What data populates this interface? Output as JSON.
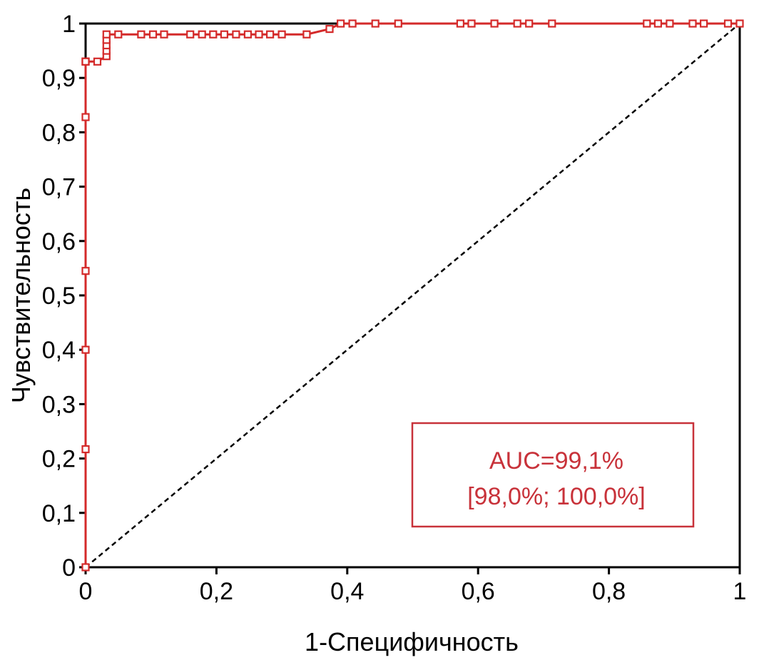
{
  "chart_data": {
    "type": "line",
    "xlabel": "1-Специфичность",
    "ylabel": "Чувствительность",
    "xlim": [
      0,
      1
    ],
    "ylim": [
      0,
      1
    ],
    "x_ticks": [
      "0",
      "0,2",
      "0,4",
      "0,6",
      "0,8",
      "1"
    ],
    "y_ticks": [
      "0",
      "0,1",
      "0,2",
      "0,3",
      "0,4",
      "0,5",
      "0,6",
      "0,7",
      "0,8",
      "0,9",
      "1"
    ],
    "grid": false,
    "series": [
      {
        "color": "#d42a2a",
        "marker": "square",
        "x": [
          0,
          0,
          0,
          0,
          0,
          0,
          0,
          0,
          0.018,
          0.032,
          0.032,
          0.032,
          0.032,
          0.032,
          0.05,
          0.085,
          0.103,
          0.12,
          0.16,
          0.178,
          0.195,
          0.212,
          0.23,
          0.248,
          0.265,
          0.282,
          0.3,
          0.338,
          0.373,
          0.39,
          0.408,
          0.443,
          0.478,
          0.573,
          0.59,
          0.625,
          0.66,
          0.678,
          0.713,
          0.858,
          0.875,
          0.893,
          0.928,
          0.945,
          0.982,
          1.0
        ],
        "y": [
          0,
          0.217,
          0.4,
          0.545,
          0.828,
          0.93,
          0.93,
          0.93,
          0.93,
          0.94,
          0.95,
          0.96,
          0.97,
          0.98,
          0.98,
          0.98,
          0.98,
          0.98,
          0.98,
          0.98,
          0.98,
          0.98,
          0.98,
          0.98,
          0.98,
          0.98,
          0.98,
          0.98,
          0.99,
          1.0,
          1.0,
          1.0,
          1.0,
          1.0,
          1.0,
          1.0,
          1.0,
          1.0,
          1.0,
          1.0,
          1.0,
          1.0,
          1.0,
          1.0,
          1.0,
          1.0
        ]
      }
    ],
    "reference_line": {
      "x": [
        0,
        1
      ],
      "y": [
        0,
        1
      ],
      "style": "dashed",
      "color": "#000000"
    },
    "annotation": {
      "line1": "AUC=99,1%",
      "line2": "[98,0%; 100,0%]",
      "color": "#c8323a"
    }
  }
}
